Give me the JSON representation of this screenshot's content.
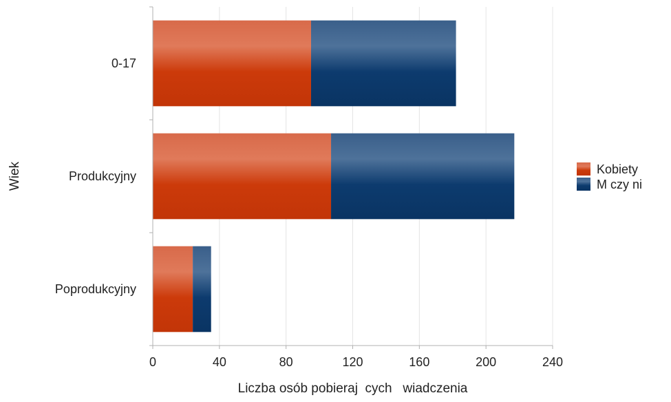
{
  "chart_data": {
    "type": "bar",
    "orientation": "horizontal",
    "stacked": true,
    "categories": [
      "0-17",
      "Produkcyjny",
      "Poprodukcyjny"
    ],
    "series": [
      {
        "name": "Kobiety",
        "values": [
          95,
          107,
          24
        ],
        "color": "#cc3a0a"
      },
      {
        "name": "M    czy ni",
        "values": [
          87,
          110,
          11
        ],
        "color": "#0d3b6e"
      }
    ],
    "xlabel": "Liczba osób pobieraj  cych   wiadczenia",
    "ylabel": "Wiek",
    "xlim": [
      0,
      240
    ],
    "xticks": [
      0,
      40,
      80,
      120,
      160,
      200,
      240
    ],
    "grid": true,
    "legend_position": "right"
  }
}
